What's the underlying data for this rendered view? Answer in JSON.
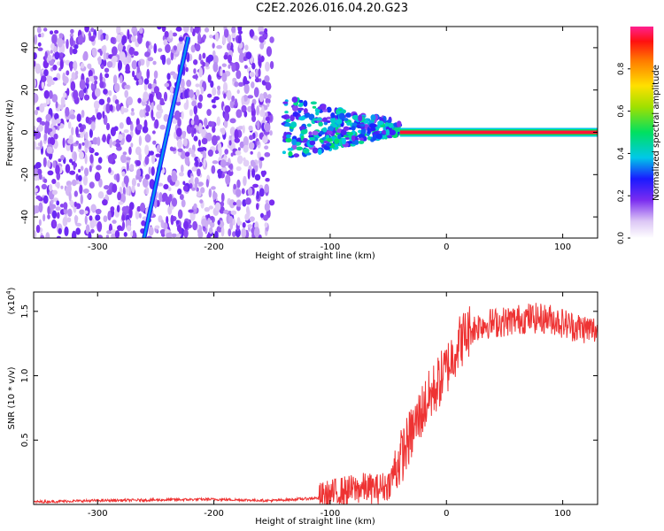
{
  "title": "C2E2.2026.016.04.20.G23",
  "chart_data": [
    {
      "type": "heatmap",
      "name": "spectrogram",
      "xlabel": "Height of straight line (km)",
      "ylabel": "Frequency (Hz)",
      "xlim": [
        -355,
        130
      ],
      "ylim": [
        -50,
        50
      ],
      "xticks": [
        -300,
        -200,
        -100,
        0,
        100
      ],
      "yticks": [
        -40,
        -20,
        0,
        20,
        40
      ],
      "colorbar": {
        "label": "Normalized spectral amplitude",
        "range": [
          0.0,
          1.0
        ],
        "ticks": [
          0.0,
          0.2,
          0.4,
          0.6,
          0.8
        ],
        "tick_labels": [
          "0.0",
          "0.2",
          "0.4",
          "0.6",
          "0.8"
        ]
      },
      "features": {
        "noise_region_x": [
          -355,
          -150
        ],
        "noise_level": 0.1,
        "diagonal_trace": {
          "x": [
            -260,
            -222
          ],
          "y": [
            -50,
            45
          ],
          "level": 0.35
        },
        "carrier_line": {
          "x": [
            -40,
            130
          ],
          "y": 0,
          "level": 0.95
        },
        "transition_region_x": [
          -140,
          -40
        ]
      }
    },
    {
      "type": "line",
      "name": "snr",
      "xlabel": "Height of straight line (km)",
      "ylabel": "SNR (10 * v/v)",
      "multiplier": "(x10",
      "multiplier_exp": "4",
      "multiplier_close": ")",
      "xlim": [
        -355,
        130
      ],
      "ylim": [
        0,
        1.65
      ],
      "xticks": [
        -300,
        -200,
        -100,
        0,
        100
      ],
      "yticks": [
        0.5,
        1.0,
        1.5
      ],
      "ytick_labels": [
        "0.5",
        "1.0",
        "1.5"
      ],
      "color": "#ee3333",
      "series": [
        {
          "name": "SNR",
          "x": [
            -355,
            -300,
            -200,
            -150,
            -110,
            -90,
            -70,
            -60,
            -50,
            -40,
            -30,
            -20,
            -10,
            0,
            10,
            20,
            30,
            50,
            70,
            90,
            110,
            130
          ],
          "values": [
            0.02,
            0.03,
            0.04,
            0.03,
            0.05,
            0.1,
            0.13,
            0.12,
            0.15,
            0.35,
            0.55,
            0.75,
            0.9,
            1.05,
            1.25,
            1.35,
            1.4,
            1.42,
            1.45,
            1.44,
            1.38,
            1.35
          ]
        }
      ]
    }
  ]
}
